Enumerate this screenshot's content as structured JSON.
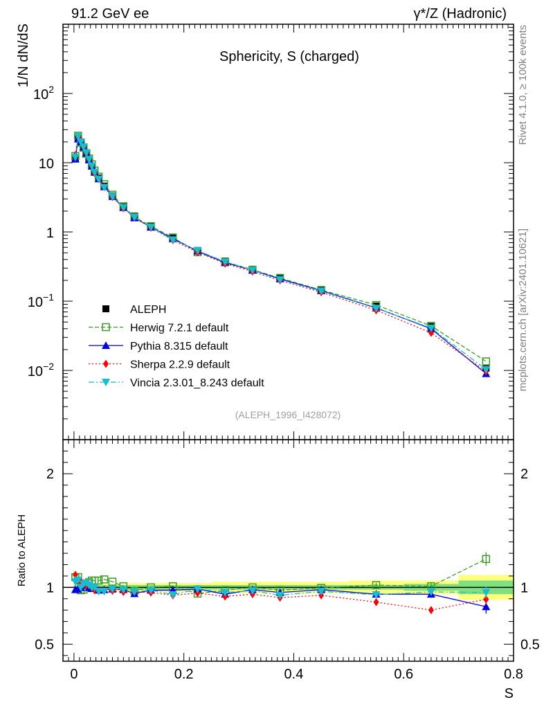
{
  "header": {
    "left": "91.2 GeV ee",
    "right": "γ*/Z (Hadronic)"
  },
  "side_text": {
    "top": "Rivet 4.1.0, ≥ 100k events",
    "bottom": "mcplots.cern.ch [arXiv:2401.10621]"
  },
  "chart_data": [
    {
      "type": "line",
      "panel": "main",
      "title": "Sphericity, S (charged)",
      "watermark": "(ALEPH_1996_I428072)",
      "ylabel": "1/N  dN/dS",
      "xlabel": "S",
      "yscale": "log",
      "xlim": [
        -0.02,
        0.8
      ],
      "ylim": [
        0.001,
        1000
      ],
      "ytick_labels": [
        {
          "value": 0.01,
          "base": "10",
          "exp": "−2"
        },
        {
          "value": 0.1,
          "base": "10",
          "exp": "−1"
        },
        {
          "value": 1,
          "base": "1",
          "exp": ""
        },
        {
          "value": 10,
          "base": "10",
          "exp": ""
        },
        {
          "value": 100,
          "base": "10",
          "exp": "2"
        }
      ],
      "x": [
        0.0025,
        0.0075,
        0.0125,
        0.0175,
        0.0225,
        0.0275,
        0.0325,
        0.0375,
        0.045,
        0.055,
        0.07,
        0.09,
        0.11,
        0.14,
        0.18,
        0.225,
        0.275,
        0.325,
        0.375,
        0.45,
        0.55,
        0.65,
        0.75
      ],
      "series": [
        {
          "name": "ALEPH",
          "color": "#000000",
          "marker": "square-filled",
          "line": "none",
          "values": [
            11.5,
            22.5,
            20.0,
            16.5,
            13.5,
            11.0,
            9.0,
            7.3,
            6.0,
            4.6,
            3.3,
            2.3,
            1.7,
            1.2,
            0.82,
            0.54,
            0.38,
            0.285,
            0.22,
            0.145,
            0.085,
            0.043,
            0.0108
          ]
        },
        {
          "name": "Herwig 7.2.1 default",
          "color": "#3a9d23",
          "marker": "square-open",
          "line": "dashed",
          "values": [
            12.5,
            24.5,
            19.5,
            16.5,
            13.5,
            11.5,
            9.5,
            7.7,
            6.3,
            4.9,
            3.45,
            2.35,
            1.65,
            1.21,
            0.83,
            0.51,
            0.37,
            0.285,
            0.215,
            0.145,
            0.088,
            0.044,
            0.0135
          ]
        },
        {
          "name": "Pythia 8.315 default",
          "color": "#0000e6",
          "marker": "triangle-up",
          "line": "solid",
          "values": [
            11.3,
            22.0,
            20.5,
            17.0,
            13.8,
            11.0,
            8.9,
            7.3,
            5.85,
            4.5,
            3.25,
            2.25,
            1.6,
            1.17,
            0.8,
            0.53,
            0.36,
            0.28,
            0.21,
            0.142,
            0.08,
            0.04,
            0.009
          ]
        },
        {
          "name": "Sherpa 2.2.9 default",
          "color": "#ff0000",
          "marker": "diamond",
          "line": "dotted",
          "values": [
            12.8,
            23.5,
            21.0,
            17.0,
            13.8,
            11.2,
            9.0,
            7.1,
            5.8,
            4.45,
            3.2,
            2.2,
            1.63,
            1.15,
            0.76,
            0.51,
            0.35,
            0.268,
            0.2,
            0.135,
            0.074,
            0.035,
            0.0097
          ]
        },
        {
          "name": "Vincia 2.3.01_8.243 default",
          "color": "#17becf",
          "marker": "triangle-down",
          "line": "dashdot",
          "values": [
            12.0,
            24.0,
            20.0,
            17.0,
            14.0,
            11.2,
            9.0,
            7.3,
            5.8,
            4.4,
            3.25,
            2.25,
            1.63,
            1.17,
            0.77,
            0.54,
            0.37,
            0.28,
            0.205,
            0.14,
            0.079,
            0.041,
            0.0103
          ]
        }
      ]
    },
    {
      "type": "line",
      "panel": "ratio",
      "ylabel": "Ratio to ALEPH",
      "xlabel": "S",
      "xlim": [
        -0.02,
        0.8
      ],
      "ylim": [
        0.35,
        2.3
      ],
      "xticks": [
        0,
        0.2,
        0.4,
        0.6,
        0.8
      ],
      "xtick_labels": [
        "0",
        "0.2",
        "0.4",
        "0.6",
        "0.8"
      ],
      "yticks": [
        0.5,
        1,
        2
      ],
      "ytick_labels": [
        "0.5",
        "1",
        "2"
      ],
      "x": [
        0.0025,
        0.0075,
        0.0125,
        0.0175,
        0.0225,
        0.0275,
        0.0325,
        0.0375,
        0.045,
        0.055,
        0.07,
        0.09,
        0.11,
        0.14,
        0.18,
        0.225,
        0.275,
        0.325,
        0.375,
        0.45,
        0.55,
        0.65,
        0.75
      ],
      "band_edges": [
        0,
        0.005,
        0.01,
        0.015,
        0.02,
        0.025,
        0.03,
        0.035,
        0.04,
        0.05,
        0.06,
        0.08,
        0.1,
        0.12,
        0.16,
        0.2,
        0.25,
        0.3,
        0.35,
        0.4,
        0.5,
        0.6,
        0.7,
        0.8
      ],
      "stat_band": [
        0.02,
        0.02,
        0.02,
        0.02,
        0.02,
        0.02,
        0.02,
        0.02,
        0.02,
        0.02,
        0.02,
        0.02,
        0.02,
        0.02,
        0.02,
        0.02,
        0.02,
        0.02,
        0.02,
        0.02,
        0.02,
        0.03,
        0.06
      ],
      "total_band": [
        0.03,
        0.03,
        0.03,
        0.03,
        0.03,
        0.03,
        0.03,
        0.03,
        0.03,
        0.03,
        0.03,
        0.03,
        0.04,
        0.04,
        0.04,
        0.04,
        0.05,
        0.05,
        0.05,
        0.05,
        0.06,
        0.06,
        0.11
      ],
      "series": [
        {
          "name": "Herwig 7.2.1 default",
          "color": "#3a9d23",
          "values": [
            1.09,
            1.09,
            0.975,
            0.98,
            1.0,
            1.045,
            1.06,
            1.06,
            1.06,
            1.07,
            1.05,
            1.01,
            0.97,
            1.0,
            1.01,
            0.945,
            0.975,
            1.0,
            0.975,
            0.995,
            1.02,
            1.01,
            1.25
          ],
          "err": [
            0,
            0,
            0,
            0,
            0,
            0,
            0,
            0,
            0,
            0,
            0,
            0,
            0,
            0,
            0,
            0,
            0,
            0,
            0,
            0,
            0.02,
            0.03,
            0.06
          ]
        },
        {
          "name": "Pythia 8.315 default",
          "color": "#0000e6",
          "values": [
            0.98,
            0.985,
            1.0,
            1.03,
            1.02,
            1.0,
            0.99,
            1.0,
            0.975,
            0.98,
            0.985,
            0.98,
            0.945,
            0.975,
            0.975,
            0.985,
            0.94,
            0.98,
            0.955,
            0.98,
            0.94,
            0.94,
            0.83
          ],
          "err": [
            0,
            0,
            0,
            0,
            0,
            0,
            0,
            0,
            0,
            0,
            0,
            0,
            0,
            0,
            0,
            0,
            0,
            0,
            0,
            0,
            0.02,
            0.03,
            0.06
          ]
        },
        {
          "name": "Sherpa 2.2.9 default",
          "color": "#ff0000",
          "values": [
            1.11,
            1.045,
            1.05,
            1.03,
            1.02,
            1.02,
            1.0,
            0.975,
            0.97,
            0.97,
            0.97,
            0.96,
            0.96,
            0.955,
            0.93,
            0.95,
            0.92,
            0.94,
            0.91,
            0.93,
            0.87,
            0.8,
            0.895
          ],
          "err": [
            0,
            0,
            0,
            0,
            0,
            0,
            0,
            0,
            0,
            0,
            0,
            0,
            0,
            0,
            0,
            0,
            0,
            0,
            0,
            0,
            0.02,
            0.03,
            0.05
          ]
        },
        {
          "name": "Vincia 2.3.01_8.243 default",
          "color": "#17becf",
          "values": [
            1.05,
            1.065,
            1.0,
            1.03,
            1.04,
            1.02,
            1.0,
            1.0,
            0.965,
            0.965,
            0.985,
            0.98,
            0.96,
            0.975,
            0.935,
            0.985,
            0.955,
            0.97,
            0.93,
            0.965,
            0.935,
            0.96,
            0.955
          ],
          "err": [
            0,
            0,
            0,
            0,
            0,
            0,
            0,
            0,
            0,
            0,
            0,
            0,
            0,
            0,
            0,
            0,
            0,
            0,
            0,
            0,
            0.02,
            0.03,
            0.05
          ]
        }
      ]
    }
  ]
}
